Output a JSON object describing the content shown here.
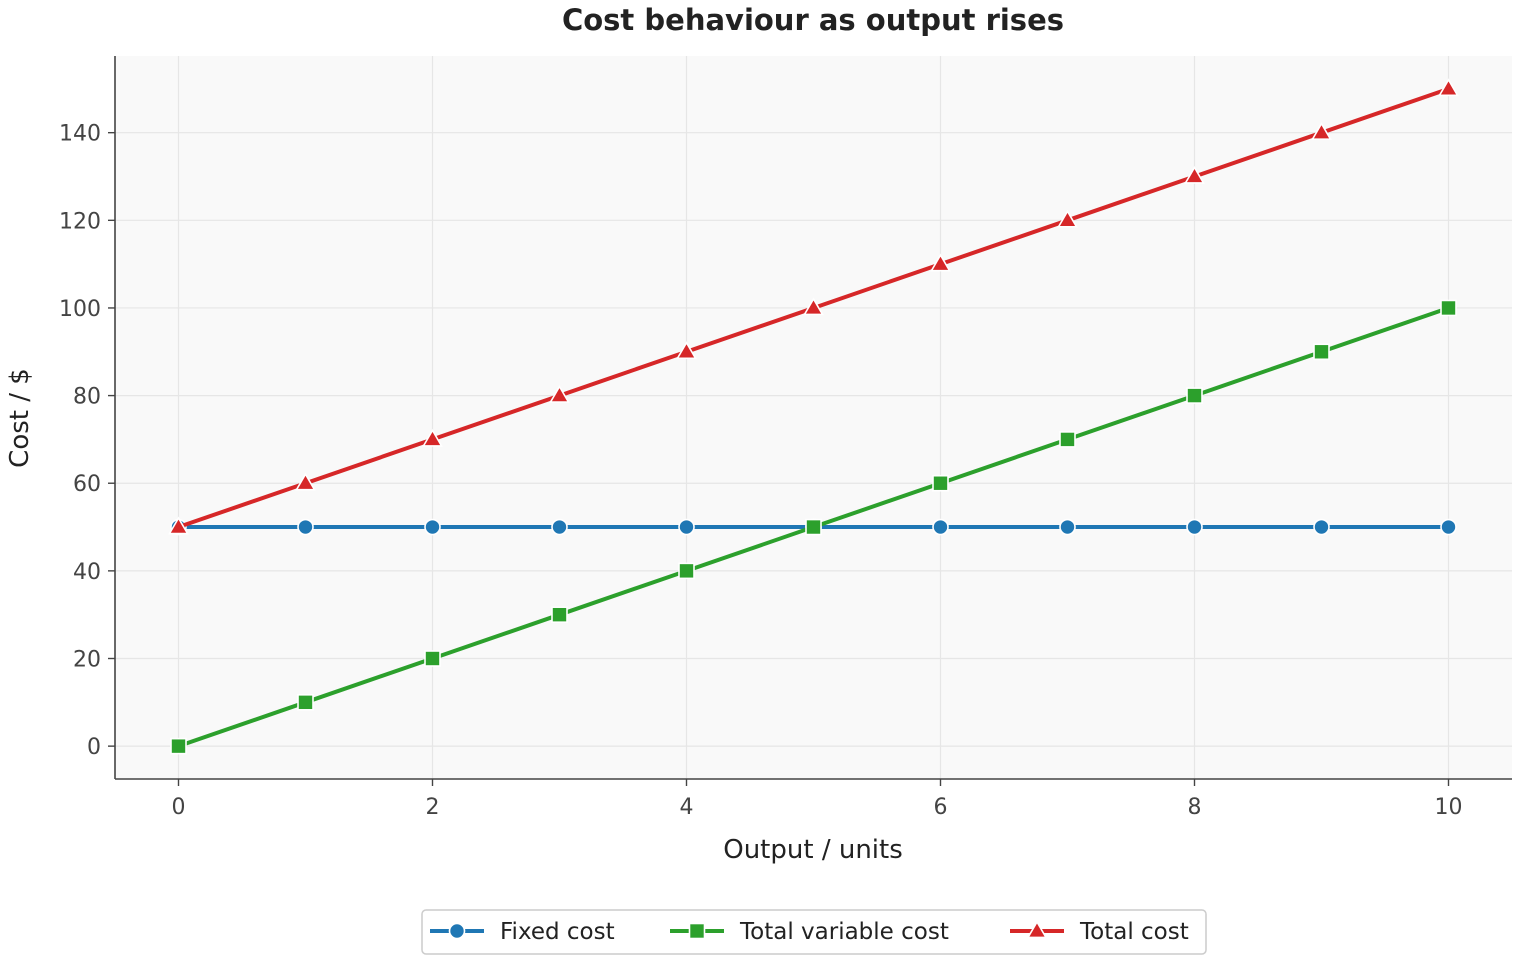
{
  "chart_data": {
    "type": "line",
    "title": "Cost behaviour as output rises",
    "xlabel": "Output / units",
    "ylabel": "Cost / $",
    "x": [
      0,
      1,
      2,
      3,
      4,
      5,
      6,
      7,
      8,
      9,
      10
    ],
    "xlim": [
      -0.5,
      10.5
    ],
    "ylim": [
      -7.5,
      157.5
    ],
    "xticks": [
      0,
      2,
      4,
      6,
      8,
      10
    ],
    "yticks": [
      0,
      20,
      40,
      60,
      80,
      100,
      120,
      140
    ],
    "grid": true,
    "legend_position": "bottom-center",
    "series": [
      {
        "name": "Fixed cost",
        "color": "#1f77b4",
        "marker": "circle",
        "values": [
          50,
          50,
          50,
          50,
          50,
          50,
          50,
          50,
          50,
          50,
          50
        ]
      },
      {
        "name": "Total variable cost",
        "color": "#2ca02c",
        "marker": "square",
        "values": [
          0,
          10,
          20,
          30,
          40,
          50,
          60,
          70,
          80,
          90,
          100
        ]
      },
      {
        "name": "Total cost",
        "color": "#d62728",
        "marker": "triangle",
        "values": [
          50,
          60,
          70,
          80,
          90,
          100,
          110,
          120,
          130,
          140,
          150
        ]
      }
    ]
  },
  "colors": {
    "plot_background": "#f9f9f9",
    "grid": "#e6e6e6",
    "axis": "#444444"
  }
}
